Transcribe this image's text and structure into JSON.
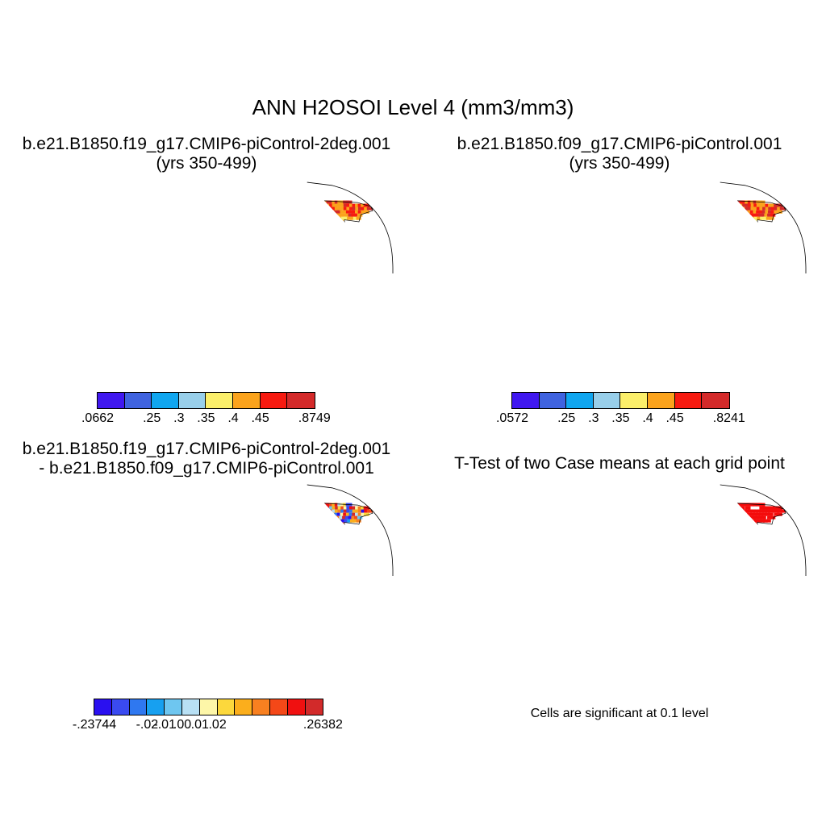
{
  "title": "ANN H2OSOI Level 4 (mm3/mm3)",
  "panels": [
    {
      "title_line1": "b.e21.B1850.f19_g17.CMIP6-piControl-2deg.001",
      "title_line2": "(yrs 350-499)"
    },
    {
      "title_line1": "b.e21.B1850.f09_g17.CMIP6-piControl.001",
      "title_line2": "(yrs 350-499)"
    },
    {
      "title_line1": "b.e21.B1850.f19_g17.CMIP6-piControl-2deg.001",
      "title_line2": "- b.e21.B1850.f09_g17.CMIP6-piControl.001"
    },
    {
      "title_line1": "T-Test of two Case means at each grid point"
    }
  ],
  "colorbars": [
    {
      "colors": [
        "#4018f0",
        "#3f63e0",
        "#10a6f0",
        "#98cfea",
        "#fbef6a",
        "#fba31c",
        "#f71a10",
        "#d42a2a"
      ],
      "labels": [
        ".0662",
        ".25",
        ".3",
        ".35",
        ".4",
        ".45",
        ".8749"
      ]
    },
    {
      "colors": [
        "#4018f0",
        "#3f63e0",
        "#10a6f0",
        "#98cfea",
        "#fbef6a",
        "#fba31c",
        "#f71a10",
        "#d42a2a"
      ],
      "labels": [
        ".0572",
        ".25",
        ".3",
        ".35",
        ".4",
        ".45",
        ".8241"
      ]
    },
    {
      "colors": [
        "#2a10f0",
        "#3a4af0",
        "#2f78f0",
        "#17a0f0",
        "#6ec6f0",
        "#b8e0f4",
        "#fdf6a8",
        "#fcd83c",
        "#fbae1c",
        "#f88020",
        "#f44818",
        "#f01010",
        "#d22a2a"
      ],
      "labels": [
        "-.23744",
        "-.02",
        "-.01",
        ".00",
        ".01",
        ".02",
        ".26382"
      ]
    }
  ],
  "significance_note": "Cells are significant at 0.1 level",
  "colors": {
    "significant": "#f40c0c"
  }
}
